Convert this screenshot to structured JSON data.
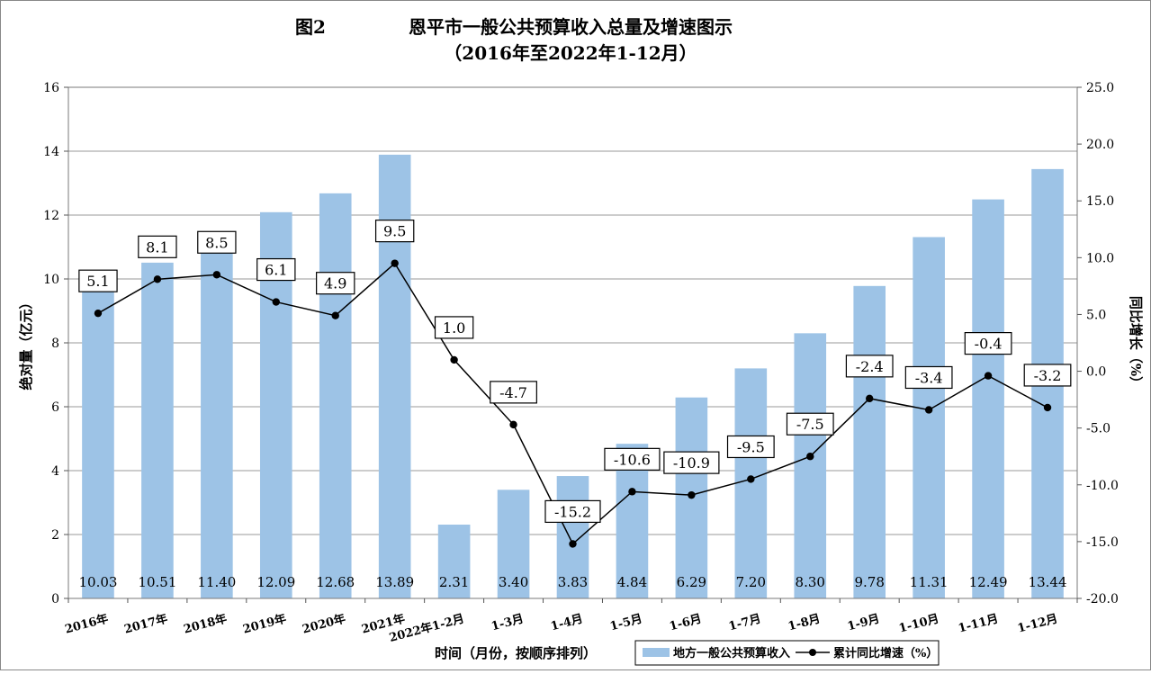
{
  "title": {
    "fig": "图2",
    "main": "恩平市一般公共预算收入总量及增速图示",
    "sub": "（2016年至2022年1-12月）"
  },
  "chart_data": {
    "type": "bar",
    "categories": [
      "2016年",
      "2017年",
      "2018年",
      "2019年",
      "2020年",
      "2021年",
      "2022年1-2月",
      "1-3月",
      "1-4月",
      "1-5月",
      "1-6月",
      "1-7月",
      "1-8月",
      "1-9月",
      "1-10月",
      "1-11月",
      "1-12月"
    ],
    "series": [
      {
        "name": "地方一般公共预算收入",
        "type": "bar",
        "axis": "left",
        "values": [
          10.03,
          10.51,
          11.4,
          12.09,
          12.68,
          13.89,
          2.31,
          3.4,
          3.83,
          4.84,
          6.29,
          7.2,
          8.3,
          9.78,
          11.31,
          12.49,
          13.44
        ],
        "labels": [
          "10.03",
          "10.51",
          "11.40",
          "12.09",
          "12.68",
          "13.89",
          "2.31",
          "3.40",
          "3.83",
          "4.84",
          "6.29",
          "7.20",
          "8.30",
          "9.78",
          "11.31",
          "12.49",
          "13.44"
        ],
        "color": "#9dc3e6"
      },
      {
        "name": "累计同比增速（%）",
        "type": "line",
        "axis": "right",
        "values": [
          5.1,
          8.1,
          8.5,
          6.1,
          4.9,
          9.5,
          1.0,
          -4.7,
          -15.2,
          -10.6,
          -10.9,
          -9.5,
          -7.5,
          -2.4,
          -3.4,
          -0.4,
          -3.2
        ],
        "labels": [
          "5.1",
          "8.1",
          "8.5",
          "6.1",
          "4.9",
          "9.5",
          "1.0",
          "-4.7",
          "-15.2",
          "-10.6",
          "-10.9",
          "-9.5",
          "-7.5",
          "-2.4",
          "-3.4",
          "-0.4",
          "-3.2"
        ],
        "color": "#000000"
      }
    ],
    "xlabel": "时间（月份，按顺序排列）",
    "ylabel_left": "绝对量（亿元）",
    "ylabel_right": "同比增长（%）",
    "ylim_left": [
      0,
      16
    ],
    "ylim_right": [
      -20,
      25
    ],
    "yticks_left": [
      "0",
      "2",
      "4",
      "6",
      "8",
      "10",
      "12",
      "14",
      "16"
    ],
    "yticks_right": [
      "-20.0",
      "-15.0",
      "-10.0",
      "-5.0",
      "0.0",
      "5.0",
      "10.0",
      "15.0",
      "20.0",
      "25.0"
    ],
    "grid": true,
    "legend": "bottom-right"
  }
}
